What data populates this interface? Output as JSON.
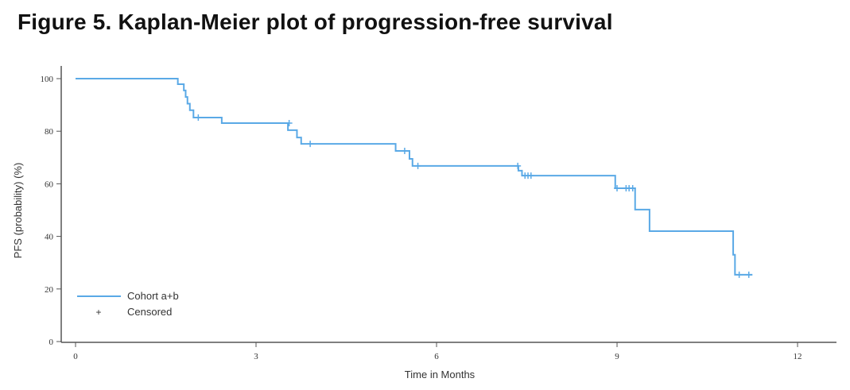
{
  "title": "Figure 5. Kaplan-Meier plot of progression-free survival",
  "chart_data": {
    "type": "line",
    "subtype": "kaplan-meier step",
    "xlabel": "Time in Months",
    "ylabel": "PFS (probability) (%)",
    "xlim": [
      0,
      12.5
    ],
    "ylim": [
      0,
      100
    ],
    "xticks": [
      "0",
      "3",
      "6",
      "9",
      "12"
    ],
    "yticks": [
      "0",
      "20",
      "40",
      "60",
      "80",
      "100"
    ],
    "grid": false,
    "legend_position": "bottom-left",
    "legend": [
      "Cohort a+b",
      "Censored"
    ],
    "series": [
      {
        "name": "Cohort a+b",
        "color": "#5aa9e6",
        "steps": [
          [
            0,
            100
          ],
          [
            1.7,
            97.9
          ],
          [
            1.8,
            95.5
          ],
          [
            1.83,
            93.0
          ],
          [
            1.86,
            90.5
          ],
          [
            1.9,
            88.0
          ],
          [
            1.96,
            85.2
          ],
          [
            2.43,
            83.1
          ],
          [
            3.53,
            80.4
          ],
          [
            3.68,
            77.6
          ],
          [
            3.75,
            75.2
          ],
          [
            5.32,
            72.5
          ],
          [
            5.55,
            69.5
          ],
          [
            5.6,
            66.8
          ],
          [
            7.36,
            65.0
          ],
          [
            7.42,
            63.1
          ],
          [
            8.97,
            58.3
          ],
          [
            9.3,
            50.2
          ],
          [
            9.54,
            42.0
          ],
          [
            10.93,
            33.0
          ],
          [
            10.96,
            25.4
          ],
          [
            11.25,
            25.4
          ]
        ],
        "censored": [
          [
            2.04,
            85.2
          ],
          [
            3.55,
            83.1
          ],
          [
            3.9,
            75.2
          ],
          [
            5.47,
            72.5
          ],
          [
            5.69,
            66.8
          ],
          [
            7.35,
            66.8
          ],
          [
            7.47,
            63.1
          ],
          [
            7.52,
            63.1
          ],
          [
            7.57,
            63.1
          ],
          [
            9.0,
            58.3
          ],
          [
            9.15,
            58.3
          ],
          [
            9.2,
            58.3
          ],
          [
            9.26,
            58.3
          ],
          [
            11.03,
            25.4
          ],
          [
            11.19,
            25.4
          ]
        ]
      }
    ]
  }
}
